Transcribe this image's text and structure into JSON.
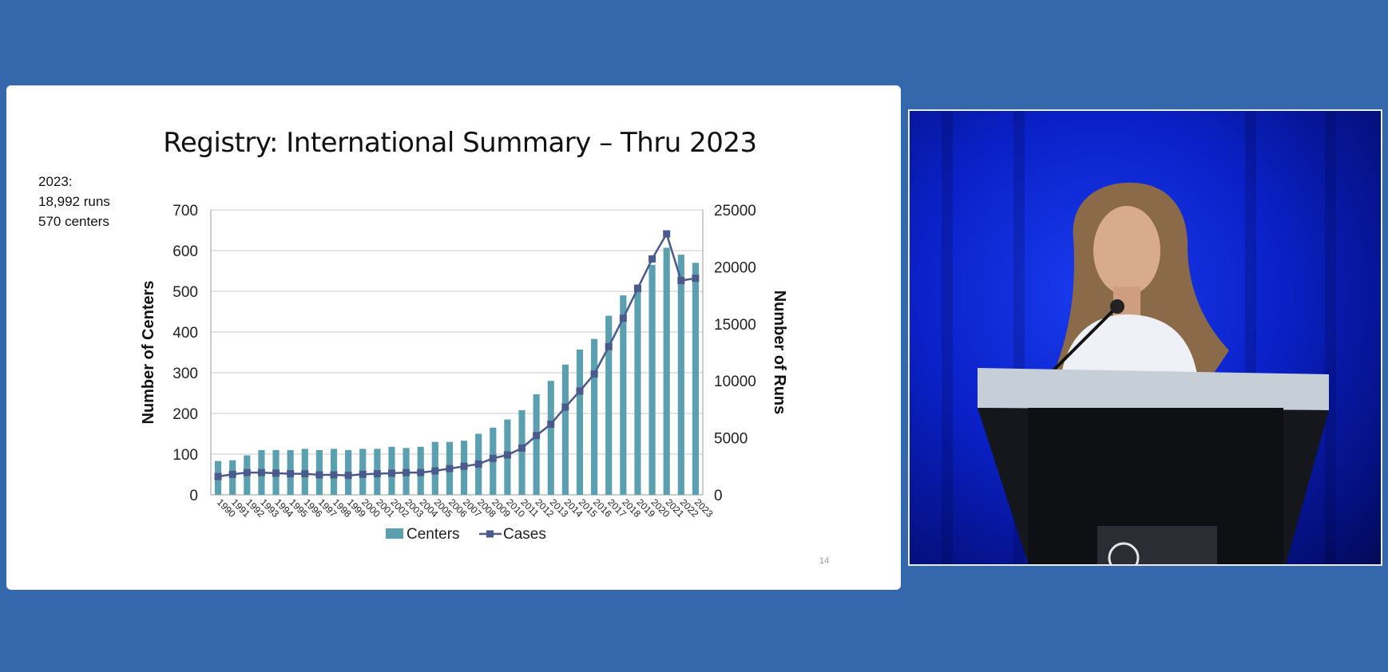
{
  "slide": {
    "title": "Registry: International Summary – Thru 2023",
    "note_lines": [
      "2023:",
      "18,992 runs",
      "570 centers"
    ],
    "slide_number": "14"
  },
  "colors": {
    "background": "#3567ad",
    "bars": "#5aa0b0",
    "line": "#4a5a8c",
    "grid": "#c8c8c8"
  },
  "chart_data": {
    "type": "bar",
    "categories": [
      "1990",
      "1991",
      "1992",
      "1993",
      "1994",
      "1995",
      "1996",
      "1997",
      "1998",
      "1999",
      "2000",
      "2001",
      "2002",
      "2003",
      "2004",
      "2005",
      "2006",
      "2007",
      "2008",
      "2009",
      "2010",
      "2011",
      "2012",
      "2013",
      "2014",
      "2015",
      "2016",
      "2017",
      "2018",
      "2019",
      "2020",
      "2021",
      "2022",
      "2023"
    ],
    "series": [
      {
        "name": "Centers",
        "type": "bar",
        "axis": "left",
        "values": [
          83,
          85,
          97,
          110,
          110,
          110,
          113,
          110,
          113,
          110,
          113,
          113,
          118,
          115,
          118,
          130,
          130,
          133,
          150,
          165,
          185,
          208,
          247,
          280,
          320,
          357,
          383,
          440,
          490,
          517,
          565,
          607,
          590,
          570
        ]
      },
      {
        "name": "Cases",
        "type": "line",
        "axis": "right",
        "values": [
          1600,
          1800,
          1950,
          1950,
          1900,
          1850,
          1850,
          1750,
          1750,
          1700,
          1800,
          1850,
          1900,
          1950,
          1950,
          2100,
          2300,
          2500,
          2700,
          3200,
          3500,
          4100,
          5200,
          6200,
          7700,
          9100,
          10600,
          13000,
          15500,
          18100,
          20700,
          22900,
          18800,
          19000
        ]
      }
    ],
    "y_left": {
      "label": "Number of Centers",
      "range": [
        0,
        700
      ],
      "ticks": [
        0,
        100,
        200,
        300,
        400,
        500,
        600,
        700
      ]
    },
    "y_right": {
      "label": "Number of Runs",
      "range": [
        0,
        25000
      ],
      "ticks": [
        0,
        5000,
        10000,
        15000,
        20000,
        25000
      ]
    },
    "xlabel": "",
    "grid": true,
    "legend": "bottom"
  }
}
